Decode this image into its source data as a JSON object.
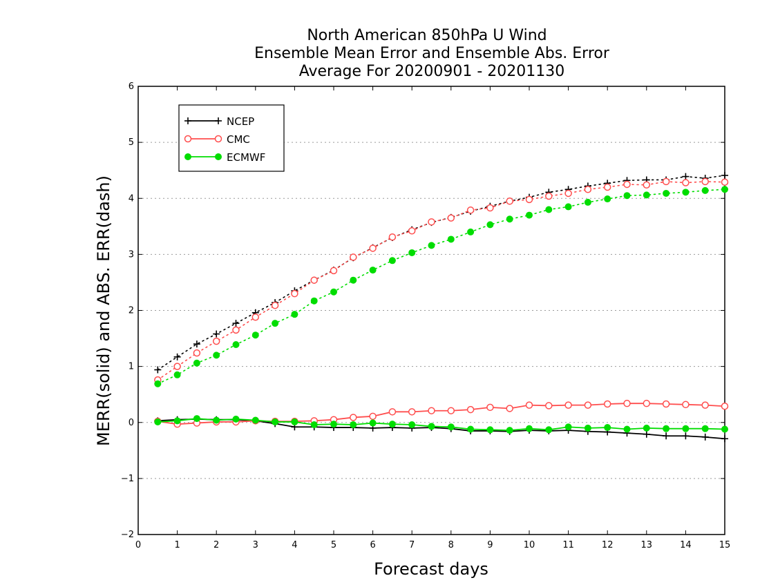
{
  "chart_data": {
    "type": "line",
    "title_lines": [
      "North American 850hPa U Wind",
      "Ensemble Mean Error and Ensemble Abs. Error",
      "Average For 20200901 - 20201130"
    ],
    "xlabel": "Forecast days",
    "ylabel": "MERR(solid) and ABS. ERR(dash)",
    "xlim": [
      0,
      15
    ],
    "ylim": [
      -2,
      6
    ],
    "xticks": [
      0,
      1,
      2,
      3,
      4,
      5,
      6,
      7,
      8,
      9,
      10,
      11,
      12,
      13,
      14,
      15
    ],
    "yticks": [
      -2,
      -1,
      0,
      1,
      2,
      3,
      4,
      5,
      6
    ],
    "grid": "horizontal-dotted",
    "legend_position": "top-left",
    "x": [
      0.5,
      1,
      1.5,
      2,
      2.5,
      3,
      3.5,
      4,
      4.5,
      5,
      5.5,
      6,
      6.5,
      7,
      7.5,
      8,
      8.5,
      9,
      9.5,
      10,
      10.5,
      11,
      11.5,
      12,
      12.5,
      13,
      13.5,
      14,
      14.5,
      15
    ],
    "series": [
      {
        "name": "NCEP",
        "color": "#000000",
        "marker": "plus",
        "mean_error": [
          0.03,
          0.05,
          0.06,
          0.05,
          0.05,
          0.03,
          -0.02,
          -0.08,
          -0.08,
          -0.09,
          -0.09,
          -0.1,
          -0.09,
          -0.1,
          -0.09,
          -0.11,
          -0.15,
          -0.15,
          -0.16,
          -0.14,
          -0.15,
          -0.14,
          -0.16,
          -0.17,
          -0.19,
          -0.21,
          -0.24,
          -0.24,
          -0.26,
          -0.29
        ],
        "abs_error": [
          0.94,
          1.17,
          1.4,
          1.58,
          1.77,
          1.96,
          2.14,
          2.35,
          2.54,
          2.72,
          2.94,
          3.12,
          3.3,
          3.44,
          3.57,
          3.66,
          3.77,
          3.86,
          3.95,
          4.02,
          4.11,
          4.16,
          4.22,
          4.27,
          4.32,
          4.33,
          4.33,
          4.39,
          4.36,
          4.41
        ]
      },
      {
        "name": "CMC",
        "color": "#ff4d4d",
        "marker": "open-circle",
        "mean_error": [
          0.02,
          -0.03,
          -0.01,
          0.01,
          0.01,
          0.03,
          0.02,
          0.02,
          0.03,
          0.05,
          0.09,
          0.11,
          0.19,
          0.19,
          0.21,
          0.21,
          0.23,
          0.27,
          0.25,
          0.31,
          0.3,
          0.31,
          0.31,
          0.33,
          0.34,
          0.34,
          0.33,
          0.32,
          0.31,
          0.29
        ],
        "abs_error": [
          0.76,
          1.0,
          1.24,
          1.45,
          1.65,
          1.88,
          2.09,
          2.3,
          2.54,
          2.71,
          2.95,
          3.11,
          3.31,
          3.42,
          3.58,
          3.65,
          3.79,
          3.83,
          3.95,
          3.98,
          4.04,
          4.09,
          4.16,
          4.2,
          4.25,
          4.24,
          4.3,
          4.28,
          4.3,
          4.29
        ]
      },
      {
        "name": "ECMWF",
        "color": "#00dd00",
        "marker": "filled-circle",
        "mean_error": [
          0.01,
          0.03,
          0.07,
          0.04,
          0.06,
          0.04,
          0.01,
          0.01,
          -0.04,
          -0.03,
          -0.04,
          -0.01,
          -0.03,
          -0.04,
          -0.07,
          -0.08,
          -0.12,
          -0.13,
          -0.14,
          -0.11,
          -0.13,
          -0.08,
          -0.1,
          -0.09,
          -0.12,
          -0.1,
          -0.11,
          -0.11,
          -0.11,
          -0.12
        ],
        "abs_error": [
          0.69,
          0.85,
          1.06,
          1.2,
          1.39,
          1.56,
          1.77,
          1.93,
          2.17,
          2.33,
          2.54,
          2.72,
          2.89,
          3.03,
          3.16,
          3.27,
          3.4,
          3.53,
          3.63,
          3.7,
          3.8,
          3.85,
          3.93,
          3.99,
          4.05,
          4.06,
          4.09,
          4.11,
          4.14,
          4.16
        ]
      }
    ]
  }
}
